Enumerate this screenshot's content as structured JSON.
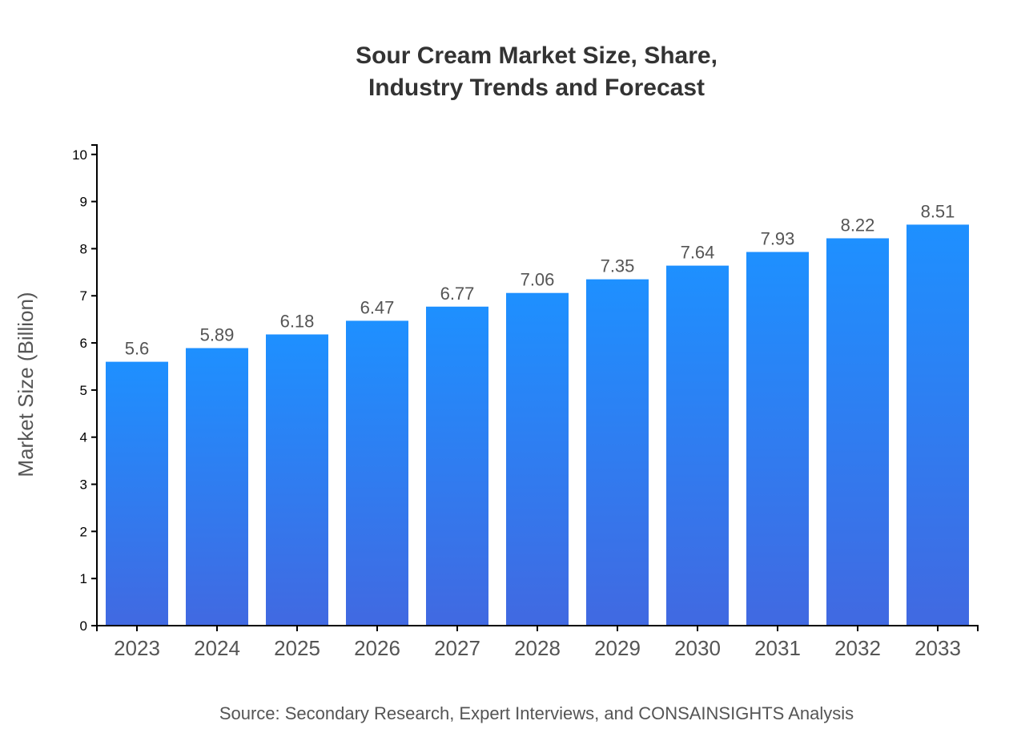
{
  "chart_data": {
    "type": "bar",
    "title_lines": [
      "Sour Cream Market Size, Share,",
      "Industry Trends and Forecast"
    ],
    "ylabel": "Market Size (Billion)",
    "xlabel": "",
    "categories": [
      "2023",
      "2024",
      "2025",
      "2026",
      "2027",
      "2028",
      "2029",
      "2030",
      "2031",
      "2032",
      "2033"
    ],
    "values": [
      5.6,
      5.89,
      6.18,
      6.47,
      6.77,
      7.06,
      7.35,
      7.64,
      7.93,
      8.22,
      8.51
    ],
    "ylim": [
      0,
      10.2
    ],
    "yticks": [
      0,
      1,
      2,
      3,
      4,
      5,
      6,
      7,
      8,
      9,
      10
    ],
    "grid": false,
    "bar_gradient": {
      "top": "#1e90ff",
      "bottom": "#4169e1"
    },
    "source": "Source: Secondary Research, Expert Interviews, and CONSAINSIGHTS Analysis"
  }
}
